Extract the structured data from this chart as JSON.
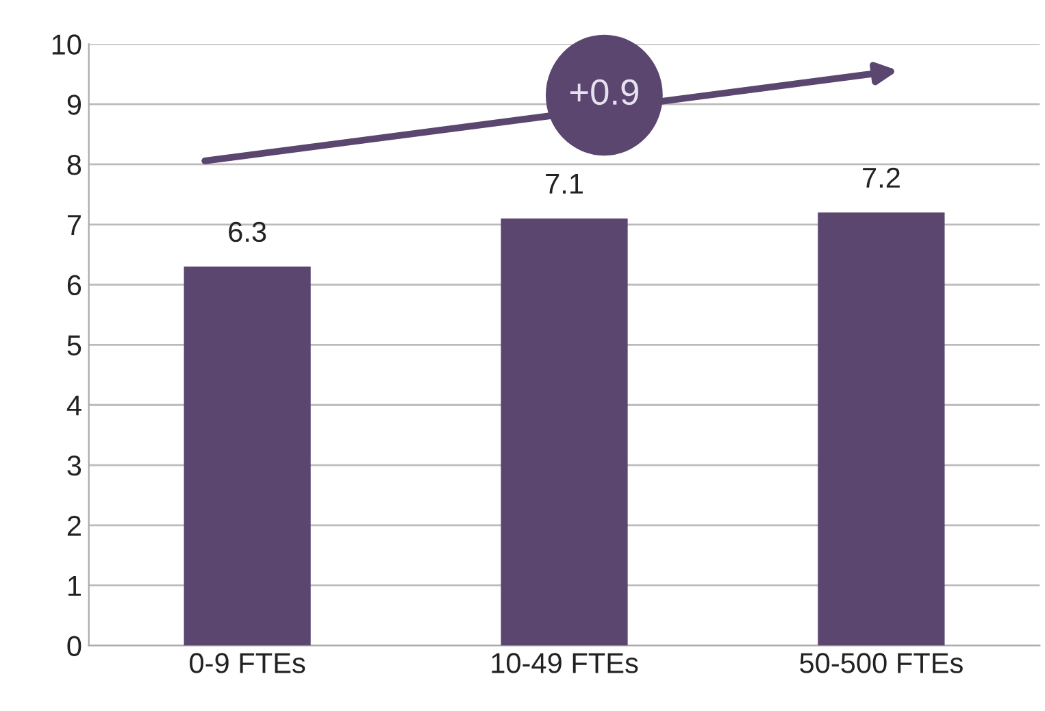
{
  "chart_data": {
    "type": "bar",
    "categories": [
      "0-9 FTEs",
      "10-49 FTEs",
      "50-500 FTEs"
    ],
    "values": [
      6.3,
      7.1,
      7.2
    ],
    "color": "#5b466f",
    "ylim": [
      0,
      10
    ],
    "yticks": [
      0,
      1,
      2,
      3,
      4,
      5,
      6,
      7,
      8,
      9,
      10
    ],
    "grid": "y",
    "data_labels": true,
    "annotations": [
      "+0.9"
    ]
  }
}
